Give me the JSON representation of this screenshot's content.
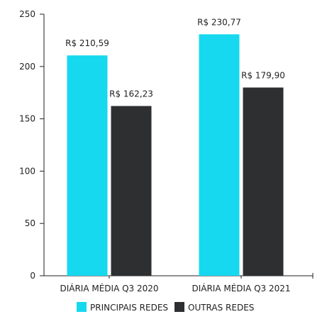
{
  "chart_data": {
    "type": "bar",
    "categories": [
      "DIÁRIA MÉDIA Q3 2020",
      "DIÁRIA MÉDIA Q3 2021"
    ],
    "series": [
      {
        "name": "PRINCIPAIS REDES",
        "values": [
          210.59,
          230.77
        ],
        "labels": [
          "R$ 210,59",
          "R$ 230,77"
        ],
        "color": "#16D9EF"
      },
      {
        "name": "OUTRAS REDES",
        "values": [
          162.23,
          179.9
        ],
        "labels": [
          "R$ 162,23",
          "R$ 179,90"
        ],
        "color": "#2D2F31"
      }
    ],
    "yticks": [
      "0",
      "50",
      "100",
      "150",
      "200",
      "250"
    ],
    "ylim": [
      0,
      250
    ],
    "grid": false,
    "legend_position": "bottom-center",
    "title": "",
    "xlabel": "",
    "ylabel": ""
  }
}
